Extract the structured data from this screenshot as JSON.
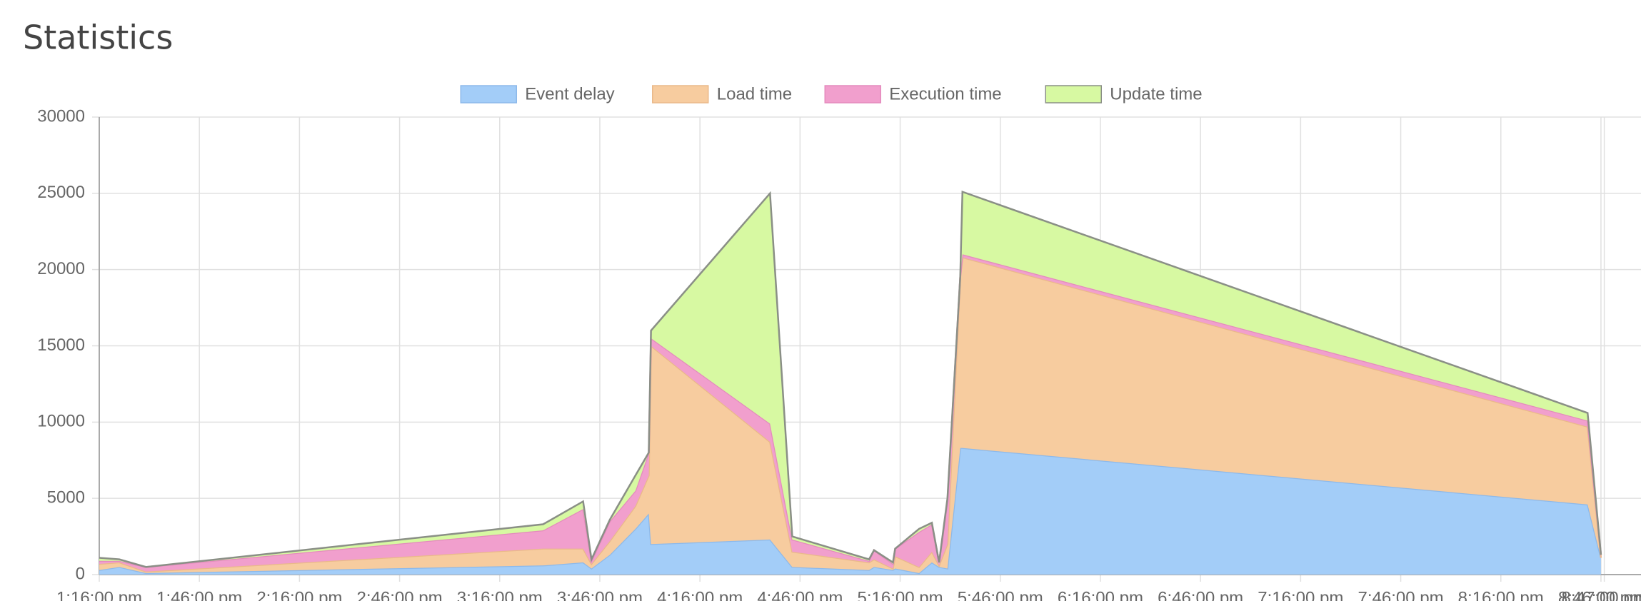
{
  "chart_data": {
    "type": "stacked-area",
    "title": "Statistics",
    "x": [
      "1:16:00 pm",
      "1:22:00 pm",
      "1:30:00 pm",
      "3:29:00 pm",
      "3:41:00 pm",
      "3:43:30 pm",
      "3:49:00 pm",
      "3:56:40 pm",
      "4:00:40 pm",
      "4:01:20 pm",
      "4:37:00 pm",
      "4:43:40 pm",
      "5:06:40 pm",
      "5:08:10 pm",
      "5:13:50 pm",
      "5:14:30 pm",
      "5:21:40 pm",
      "5:25:30 pm",
      "5:27:40 pm",
      "5:30:10 pm",
      "5:34:00 pm",
      "5:34:40 pm",
      "8:42:00 pm",
      "8:46:00 pm"
    ],
    "series": [
      {
        "name": "Event delay",
        "color": "#a3cdf8",
        "line": "#8db9ea",
        "values": [
          300,
          500,
          100,
          600,
          800,
          400,
          1300,
          3000,
          4000,
          2000,
          2300,
          500,
          300,
          500,
          300,
          400,
          100,
          800,
          500,
          400,
          8300,
          8300,
          4600,
          1100
        ]
      },
      {
        "name": "Load time",
        "color": "#f7cc9f",
        "line": "#eab98a",
        "values": [
          400,
          300,
          100,
          1100,
          900,
          300,
          900,
          1500,
          2500,
          13000,
          6400,
          1000,
          500,
          500,
          100,
          800,
          400,
          700,
          100,
          1600,
          11200,
          12500,
          5100,
          0
        ]
      },
      {
        "name": "Execution time",
        "color": "#f19fcd",
        "line": "#e48bbd",
        "values": [
          200,
          100,
          300,
          1200,
          2600,
          200,
          1300,
          1000,
          1500,
          500,
          1200,
          800,
          100,
          600,
          300,
          500,
          2300,
          1800,
          200,
          2800,
          0,
          200,
          400,
          200
        ]
      },
      {
        "name": "Update time",
        "color": "#d7f9a2",
        "line": "#8a8f86",
        "values": [
          200,
          100,
          0,
          400,
          500,
          100,
          100,
          1000,
          0,
          500,
          15100,
          200,
          100,
          0,
          100,
          0,
          200,
          100,
          0,
          200,
          0,
          4100,
          500,
          0
        ]
      }
    ],
    "xlim": [
      "1:16:00 pm",
      "8:58:00 pm"
    ],
    "xticks": [
      "1:16:00 pm",
      "1:46:00 pm",
      "2:16:00 pm",
      "2:46:00 pm",
      "3:16:00 pm",
      "3:46:00 pm",
      "4:16:00 pm",
      "4:46:00 pm",
      "5:16:00 pm",
      "5:46:00 pm",
      "6:16:00 pm",
      "6:46:00 pm",
      "7:16:00 pm",
      "7:46:00 pm",
      "8:16:00 pm",
      "8:46:00 pm",
      "8:47:00 pm"
    ],
    "ylim": [
      0,
      30000
    ],
    "yticks": [
      0,
      5000,
      10000,
      15000,
      20000,
      25000,
      30000
    ],
    "grid": true,
    "legend": "top"
  }
}
